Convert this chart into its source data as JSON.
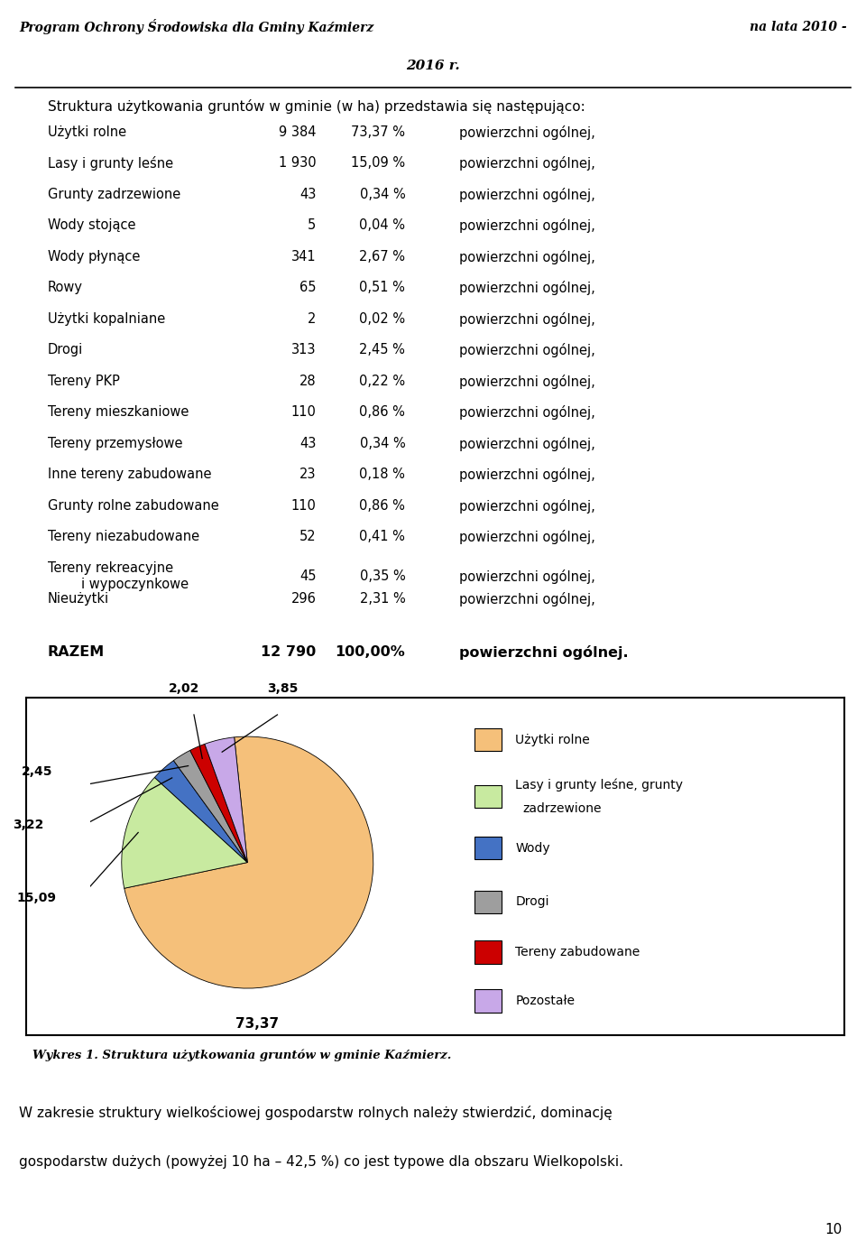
{
  "header_left": "Program Ochrony Środowiska dla Gminy Kaźmierz",
  "header_right": "na lata 2010 -",
  "header_center": "2016 r.",
  "intro_text": "Struktura użytkowania gruntów w gminie (w ha) przedstawia się następująco:",
  "table_rows": [
    [
      "Użytki rolne",
      "9 384",
      "73,37 %",
      "powierzchni ogólnej,"
    ],
    [
      "Lasy i grunty leśne",
      "1 930",
      "15,09 %",
      "powierzchni ogólnej,"
    ],
    [
      "Grunty zadrzewione",
      "43",
      "0,34 %",
      "powierzchni ogólnej,"
    ],
    [
      "Wody stojące",
      "5",
      "0,04 %",
      "powierzchni ogólnej,"
    ],
    [
      "Wody płynące",
      "341",
      "2,67 %",
      "powierzchni ogólnej,"
    ],
    [
      "Rowy",
      "65",
      "0,51 %",
      "powierzchni ogólnej,"
    ],
    [
      "Użytki kopalniane",
      "2",
      "0,02 %",
      "powierzchni ogólnej,"
    ],
    [
      "Drogi",
      "313",
      "2,45 %",
      "powierzchni ogólnej,"
    ],
    [
      "Tereny PKP",
      "28",
      "0,22 %",
      "powierzchni ogólnej,"
    ],
    [
      "Tereny mieszkaniowe",
      "110",
      "0,86 %",
      "powierzchni ogólnej,"
    ],
    [
      "Tereny przemysłowe",
      "43",
      "0,34 %",
      "powierzchni ogólnej,"
    ],
    [
      "Inne tereny zabudowane",
      "23",
      "0,18 %",
      "powierzchni ogólnej,"
    ],
    [
      "Grunty rolne zabudowane",
      "110",
      "0,86 %",
      "powierzchni ogólnej,"
    ],
    [
      "Tereny niezabudowane",
      "52",
      "0,41 %",
      "powierzchni ogólnej,"
    ],
    [
      "Tereny rekreacyjne\n        i wypoczynkowe",
      "45",
      "0,35 %",
      "powierzchni ogólnej,"
    ],
    [
      "Nieużytki",
      "296",
      "2,31 %",
      "powierzchni ogólnej,"
    ]
  ],
  "razem_row": [
    "RAZEM",
    "12 790",
    "100,00%",
    "powierzchni ogólnej."
  ],
  "pie_values": [
    73.37,
    15.09,
    3.22,
    2.45,
    2.02,
    3.85
  ],
  "pie_labels": [
    "73,37",
    "15,09",
    "3,22",
    "2,45",
    "2,02",
    "3,85"
  ],
  "pie_colors": [
    "#F5C07A",
    "#C8EAA0",
    "#4472C4",
    "#9E9E9E",
    "#CC0000",
    "#C8A8E8"
  ],
  "pie_legend_labels": [
    "Użytki rolne",
    "Lasy i grunty leśne, grunty\nzadrzewione",
    "Wody",
    "Drogi",
    "Tereny zabudowane",
    "Pozostałe"
  ],
  "caption": "Wykres 1. Struktura użytkowania gruntów w gminie Kaźmierz.",
  "footer_line1": "W zakresie struktury wielkościowej gospodarstw rolnych należy stwierdzić, dominację",
  "footer_line2": "gospodarstw dużych (powyżej 10 ha – 42,5 %) co jest typowe dla obszaru Wielkopolski.",
  "page_number": "10",
  "bg_color": "#FFFFFF"
}
